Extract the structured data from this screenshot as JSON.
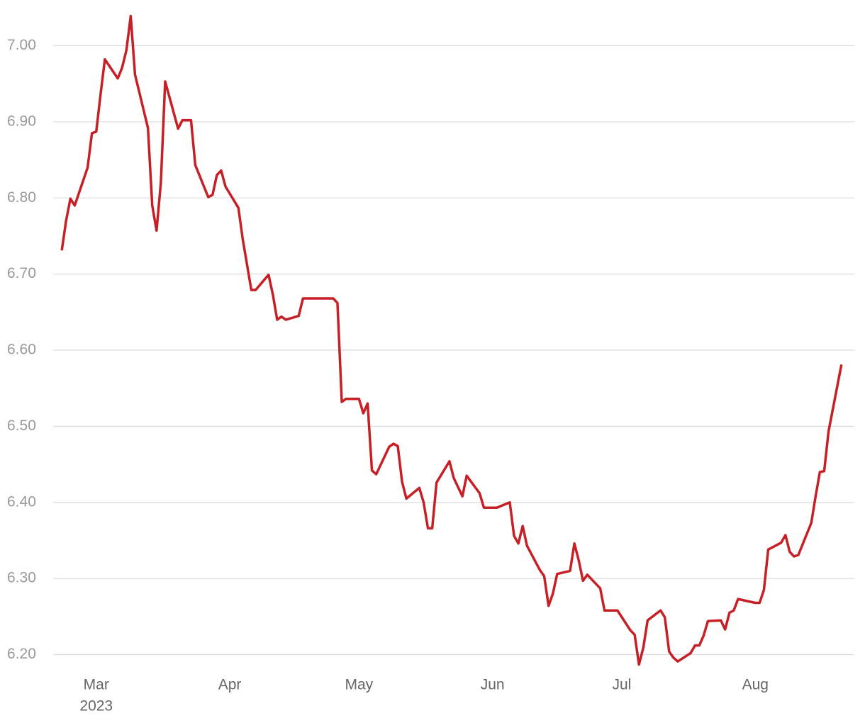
{
  "chart_data": {
    "type": "line",
    "x": [
      52,
      53,
      54,
      55,
      58,
      59,
      60,
      61,
      62,
      65,
      66,
      67,
      68,
      69,
      72,
      73,
      74,
      75,
      76,
      79,
      80,
      82,
      83,
      86,
      87,
      88,
      89,
      90,
      93,
      94,
      96,
      97,
      100,
      101,
      102,
      103,
      104,
      107,
      108,
      115,
      116,
      117,
      118,
      121,
      122,
      123,
      124,
      125,
      128,
      129,
      130,
      131,
      132,
      135,
      136,
      137,
      138,
      139,
      142,
      143,
      145,
      146,
      149,
      150,
      153,
      156,
      157,
      158,
      159,
      160,
      163,
      164,
      165,
      166,
      167,
      170,
      171,
      172,
      173,
      174,
      177,
      178,
      181,
      184,
      185,
      186,
      187,
      188,
      191,
      192,
      193,
      194,
      195,
      198,
      199,
      200,
      201,
      202,
      205,
      206,
      207,
      208,
      209,
      213,
      214,
      215,
      216,
      219,
      220,
      221,
      222,
      223,
      226,
      227,
      228,
      229,
      230,
      233
    ],
    "series": [
      {
        "name": null,
        "color": "#c62026",
        "values": [
          6.731,
          6.77,
          6.799,
          6.79,
          6.84,
          6.885,
          6.887,
          6.936,
          6.982,
          6.957,
          6.971,
          6.994,
          7.039,
          6.962,
          6.892,
          6.79,
          6.757,
          6.82,
          6.953,
          6.891,
          6.902,
          6.902,
          6.843,
          6.801,
          6.804,
          6.83,
          6.836,
          6.815,
          6.787,
          6.746,
          6.679,
          6.679,
          6.699,
          6.673,
          6.64,
          6.644,
          6.64,
          6.645,
          6.668,
          6.668,
          6.662,
          6.532,
          6.536,
          6.536,
          6.517,
          6.53,
          6.442,
          6.437,
          6.473,
          6.477,
          6.474,
          6.427,
          6.405,
          6.419,
          6.4,
          6.366,
          6.366,
          6.426,
          6.454,
          6.432,
          6.408,
          6.435,
          6.412,
          6.393,
          6.393,
          6.4,
          6.356,
          6.346,
          6.369,
          6.343,
          6.311,
          6.303,
          6.264,
          6.28,
          6.306,
          6.31,
          6.346,
          6.324,
          6.297,
          6.305,
          6.287,
          6.258,
          6.258,
          6.232,
          6.226,
          6.187,
          6.209,
          6.245,
          6.258,
          6.249,
          6.204,
          6.196,
          6.191,
          6.202,
          6.212,
          6.212,
          6.225,
          6.244,
          6.245,
          6.233,
          6.255,
          6.258,
          6.273,
          6.268,
          6.268,
          6.285,
          6.338,
          6.347,
          6.357,
          6.335,
          6.329,
          6.331,
          6.373,
          6.408,
          6.44,
          6.441,
          6.493,
          6.581
        ]
      }
    ],
    "xlim": [
      50,
      236
    ],
    "xticks": [
      {
        "value": 60,
        "label": "Mar"
      },
      {
        "value": 91,
        "label": "Apr"
      },
      {
        "value": 121,
        "label": "May"
      },
      {
        "value": 152,
        "label": "Jun"
      },
      {
        "value": 182,
        "label": "Jul"
      },
      {
        "value": 213,
        "label": "Aug"
      }
    ],
    "year": "2023",
    "ylim": [
      6.18,
      7.06
    ],
    "yticks": [
      {
        "value": 6.2,
        "label": "6.20"
      },
      {
        "value": 6.3,
        "label": "6.30"
      },
      {
        "value": 6.4,
        "label": "6.40"
      },
      {
        "value": 6.5,
        "label": "6.50"
      },
      {
        "value": 6.6,
        "label": "6.60"
      },
      {
        "value": 6.7,
        "label": "6.70"
      },
      {
        "value": 6.8,
        "label": "6.80"
      },
      {
        "value": 6.9,
        "label": "6.90"
      },
      {
        "value": 7.0,
        "label": "7.00"
      }
    ],
    "grid": true
  }
}
